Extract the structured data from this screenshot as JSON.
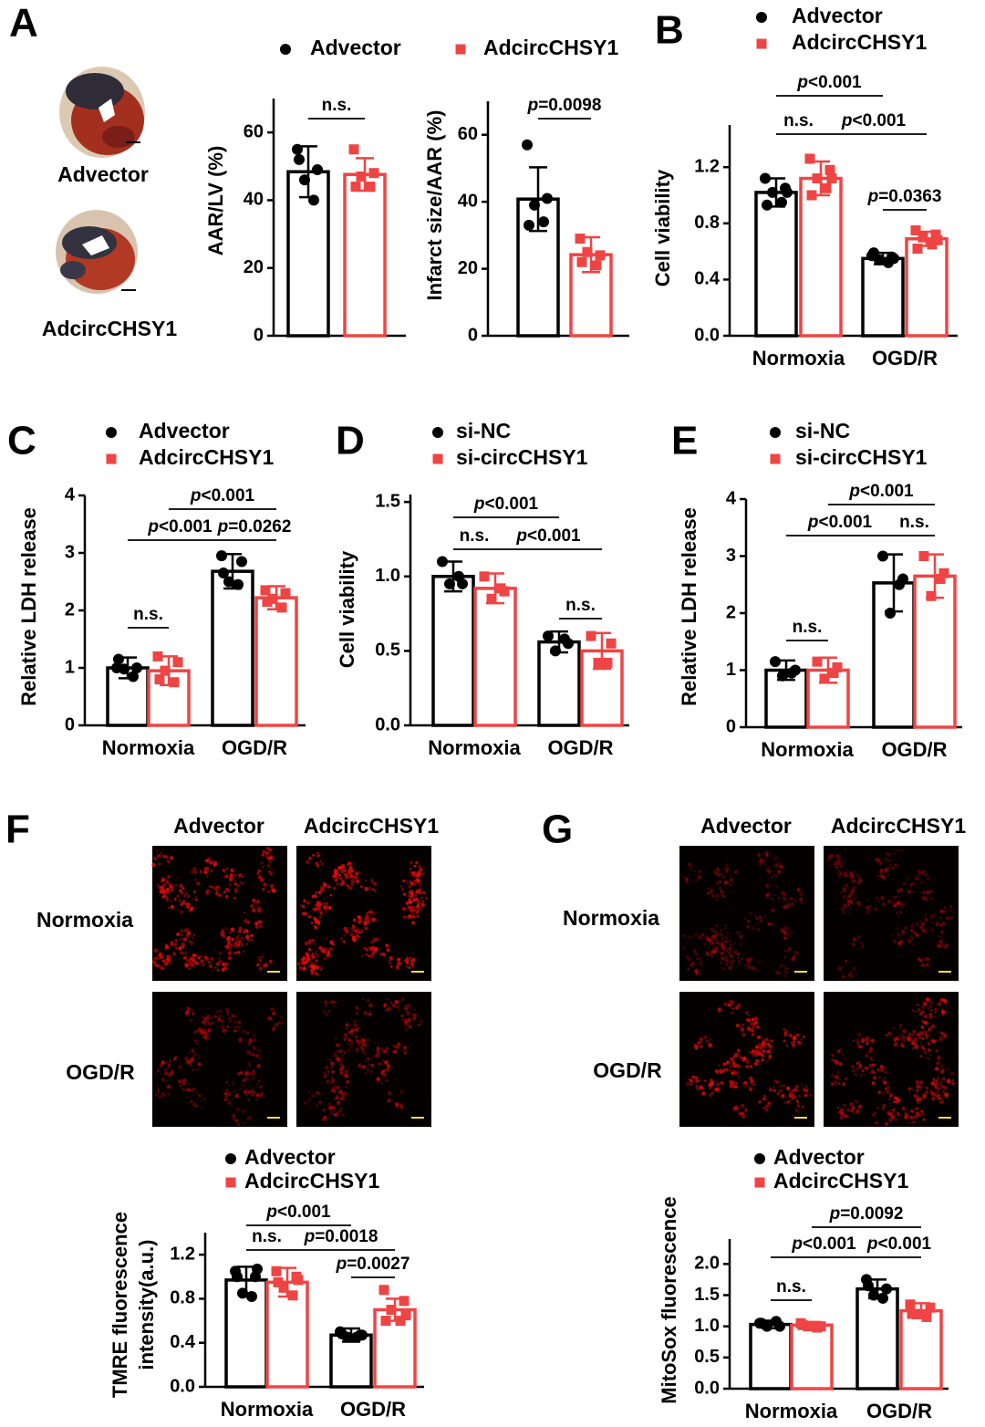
{
  "figure": {
    "panel_labels": [
      "A",
      "B",
      "C",
      "D",
      "E",
      "F",
      "G"
    ],
    "heart_labels": [
      "Advector",
      "AdcircCHSY1"
    ],
    "panel_F": {
      "columns": [
        "Advector",
        "AdcircCHSY1"
      ],
      "rows": [
        "Normoxia",
        "OGD/R"
      ]
    },
    "panel_G": {
      "columns": [
        "Advector",
        "AdcircCHSY1"
      ],
      "rows": [
        "Normoxia",
        "OGD/R"
      ]
    }
  },
  "chart_data": [
    {
      "type": "bar",
      "y_label": "AAR/LV (%)",
      "categories": [
        null
      ],
      "series": [
        {
          "name": "Advector",
          "color": "#000000",
          "values": [
            48.4
          ],
          "errors": [
            7.5
          ],
          "points": [
            [
              55,
              49,
              46,
              40,
              52
            ]
          ]
        },
        {
          "name": "AdcircCHSY1",
          "color": "#ef4444",
          "values": [
            47.6
          ],
          "errors": [
            4.8
          ],
          "points": [
            [
              55,
              48,
              47,
              44,
              44
            ]
          ]
        }
      ],
      "ylim": [
        0,
        70
      ],
      "yticks": [
        0,
        20,
        40,
        60
      ],
      "annotations": [
        "n.s."
      ]
    },
    {
      "type": "bar",
      "y_label": "Infarct size/AAR (%)",
      "categories": [
        null
      ],
      "series": [
        {
          "color": "#000000",
          "values": [
            40.8
          ],
          "errors": [
            9.5
          ],
          "points": [
            [
              57,
              41,
              39,
              34,
              33
            ]
          ]
        },
        {
          "color": "#ef4444",
          "values": [
            24.2
          ],
          "errors": [
            5.2
          ],
          "points": [
            [
              29,
              24,
              25,
              21,
              22
            ]
          ]
        }
      ],
      "ylim": [
        0,
        70
      ],
      "yticks": [
        0,
        20,
        40,
        60
      ],
      "annotations": [
        "p=0.0098"
      ]
    },
    {
      "type": "bar",
      "y_label": "Cell viability",
      "categories": [
        "Normoxia",
        "OGD/R"
      ],
      "series": [
        {
          "name": "Advector",
          "color": "#000000",
          "values": [
            1.02,
            0.55
          ],
          "errors": [
            0.1,
            0.04
          ],
          "points": [
            [
              1.12,
              1.05,
              1.02,
              0.95,
              0.93,
              1.02
            ],
            [
              0.57,
              0.56,
              0.54,
              0.52,
              0.59,
              0.55
            ]
          ]
        },
        {
          "name": "AdcircCHSY1",
          "color": "#ef4444",
          "values": [
            1.12,
            0.69
          ],
          "errors": [
            0.12,
            0.05
          ],
          "points": [
            [
              1.26,
              1.18,
              1.12,
              1.05,
              1.0,
              1.12
            ],
            [
              0.75,
              0.72,
              0.7,
              0.65,
              0.62,
              0.68
            ]
          ]
        }
      ],
      "ylim": [
        0,
        1.5
      ],
      "yticks": [
        {
          "value": 0,
          "label": "0.0"
        },
        0.4,
        0.8,
        1.2
      ],
      "annotations": [
        "p<0.001",
        "n.s.",
        "p<0.001",
        "p=0.0363"
      ]
    },
    {
      "type": "bar",
      "y_label": "Relative LDH release",
      "categories": [
        "Normoxia",
        "OGD/R"
      ],
      "series": [
        {
          "name": "Advector",
          "color": "#000000",
          "values": [
            1.0,
            2.68
          ],
          "errors": [
            0.18,
            0.3
          ],
          "points": [
            [
              1.0,
              1.0,
              0.98,
              0.85,
              1.15
            ],
            [
              2.95,
              2.85,
              2.5,
              2.45,
              2.65
            ]
          ]
        },
        {
          "name": "AdcircCHSY1",
          "color": "#ef4444",
          "values": [
            0.95,
            2.22
          ],
          "errors": [
            0.25,
            0.2
          ],
          "points": [
            [
              1.2,
              1.1,
              0.95,
              0.75,
              0.8
            ],
            [
              2.35,
              2.3,
              2.2,
              2.05,
              2.15
            ]
          ]
        }
      ],
      "ylim": [
        0,
        4
      ],
      "yticks": [
        0,
        1,
        2,
        3,
        4
      ],
      "annotations": [
        "p<0.001",
        "p<0.001",
        "p=0.0262",
        "n.s."
      ]
    },
    {
      "type": "bar",
      "y_label": "Cell viability",
      "categories": [
        "Normoxia",
        "OGD/R"
      ],
      "series": [
        {
          "name": "si-NC",
          "color": "#000000",
          "values": [
            1.0,
            0.56
          ],
          "errors": [
            0.1,
            0.07
          ],
          "points": [
            [
              1.1,
              0.95,
              0.95,
              1.0
            ],
            [
              0.6,
              0.55,
              0.5,
              0.58
            ]
          ]
        },
        {
          "name": "si-circCHSY1",
          "color": "#ef4444",
          "values": [
            0.92,
            0.5
          ],
          "errors": [
            0.1,
            0.12
          ],
          "points": [
            [
              1.0,
              0.9,
              0.85,
              0.92
            ],
            [
              0.6,
              0.55,
              0.42,
              0.42
            ]
          ]
        }
      ],
      "ylim": [
        0,
        1.55
      ],
      "yticks": [
        {
          "value": 0,
          "label": "0.0"
        },
        0.5,
        {
          "value": 1,
          "label": "1.0"
        },
        1.5
      ],
      "annotations": [
        "p<0.001",
        "n.s.",
        "p<0.001",
        "n.s."
      ]
    },
    {
      "type": "bar",
      "y_label": "Relative LDH release",
      "categories": [
        "Normoxia",
        "OGD/R"
      ],
      "series": [
        {
          "name": "si-NC",
          "color": "#000000",
          "values": [
            1.0,
            2.53
          ],
          "errors": [
            0.17,
            0.5
          ],
          "points": [
            [
              1.15,
              1.0,
              0.9,
              0.95
            ],
            [
              3.0,
              2.6,
              2.0,
              2.5
            ]
          ]
        },
        {
          "name": "si-circCHSY1",
          "color": "#ef4444",
          "values": [
            1.0,
            2.65
          ],
          "errors": [
            0.22,
            0.38
          ],
          "points": [
            [
              1.15,
              1.05,
              0.85,
              0.95
            ],
            [
              3.0,
              2.7,
              2.3,
              2.6
            ]
          ]
        }
      ],
      "ylim": [
        0,
        4
      ],
      "yticks": [
        0,
        1,
        2,
        3,
        4
      ],
      "annotations": [
        "p<0.001",
        "p<0.001",
        "n.s.",
        "n.s."
      ]
    },
    {
      "type": "bar",
      "y_label": [
        "TMRE fluorescence",
        "intensity(a.u.)"
      ],
      "categories": [
        "Normoxia",
        "OGD/R"
      ],
      "series": [
        {
          "name": "Advector",
          "color": "#000000",
          "values": [
            0.97,
            0.47
          ],
          "errors": [
            0.12,
            0.06
          ],
          "points": [
            [
              1.05,
              1.0,
              0.85,
              0.82,
              1.0,
              1.07
            ],
            [
              0.5,
              0.47,
              0.45,
              0.45,
              0.48,
              0.47
            ]
          ]
        },
        {
          "name": "AdcircCHSY1",
          "color": "#ef4444",
          "values": [
            0.95,
            0.7
          ],
          "errors": [
            0.13,
            0.1
          ],
          "points": [
            [
              1.05,
              1.0,
              0.9,
              0.83,
              0.95,
              0.97
            ],
            [
              0.88,
              0.78,
              0.7,
              0.6,
              0.6,
              0.65
            ]
          ]
        }
      ],
      "ylim": [
        0,
        1.4
      ],
      "yticks": [
        {
          "value": 0,
          "label": "0.0"
        },
        0.4,
        0.8,
        1.2
      ],
      "annotations": [
        "p<0.001",
        "n.s.",
        "p=0.0018",
        "p=0.0027"
      ]
    },
    {
      "type": "bar",
      "y_label": "MitoSox fluorescence",
      "categories": [
        "Normoxia",
        "OGD/R"
      ],
      "series": [
        {
          "name": "Advector",
          "color": "#000000",
          "values": [
            1.03,
            1.6
          ],
          "errors": [
            0.06,
            0.15
          ],
          "points": [
            [
              1.05,
              1.0,
              1.0,
              1.08,
              1.05
            ],
            [
              1.75,
              1.6,
              1.5,
              1.45,
              1.65
            ]
          ]
        },
        {
          "name": "AdcircCHSY1",
          "color": "#ef4444",
          "values": [
            1.02,
            1.25
          ],
          "errors": [
            0.05,
            0.12
          ],
          "points": [
            [
              1.05,
              1.0,
              1.0,
              0.98,
              1.02
            ],
            [
              1.35,
              1.3,
              1.2,
              1.15,
              1.2
            ]
          ]
        }
      ],
      "ylim": [
        0,
        2.4
      ],
      "yticks": [
        {
          "value": 0,
          "label": "0.0"
        },
        0.5,
        {
          "value": 1,
          "label": "1.0"
        },
        1.5,
        {
          "value": 2,
          "label": "2.0"
        }
      ],
      "annotations": [
        "p=0.0092",
        "p<0.001",
        "p<0.001",
        "n.s."
      ]
    }
  ]
}
